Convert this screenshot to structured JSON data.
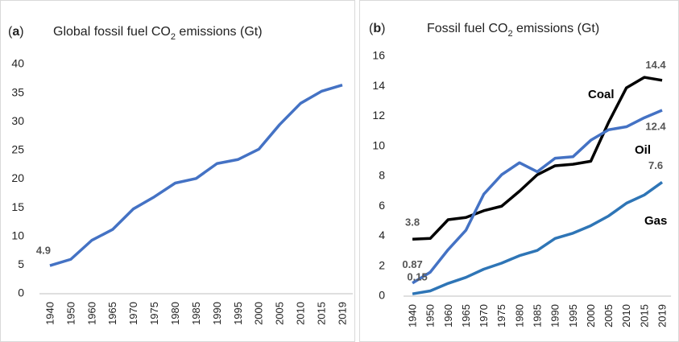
{
  "chart_data": [
    {
      "type": "line",
      "panel": "(a)",
      "title": "Global fossil fuel CO₂ emissions (Gt)",
      "categories": [
        "1940",
        "1950",
        "1960",
        "1965",
        "1970",
        "1975",
        "1980",
        "1985",
        "1990",
        "1995",
        "2000",
        "2005",
        "2010",
        "2015",
        "2019"
      ],
      "series": [
        {
          "name": null,
          "color": "#4472c4",
          "values": [
            4.9,
            6.0,
            9.3,
            11.2,
            14.8,
            16.9,
            19.3,
            20.1,
            22.7,
            23.4,
            25.2,
            29.5,
            33.2,
            35.3,
            36.4
          ]
        }
      ],
      "ylim": [
        0,
        40
      ],
      "yticks": [
        0,
        5,
        10,
        15,
        20,
        25,
        30,
        35,
        40
      ],
      "grid": false
    },
    {
      "type": "line",
      "panel": "(b)",
      "title": "Fossil fuel CO₂ emissions (Gt)",
      "categories": [
        "1940",
        "1950",
        "1960",
        "1965",
        "1970",
        "1975",
        "1980",
        "1985",
        "1990",
        "1995",
        "2000",
        "2005",
        "2010",
        "2015",
        "2019"
      ],
      "series": [
        {
          "name": "Coal",
          "color": "#000000",
          "values": [
            3.8,
            3.85,
            5.1,
            5.25,
            5.7,
            6.0,
            7.0,
            8.1,
            8.7,
            8.8,
            9.0,
            11.6,
            13.9,
            14.6,
            14.4
          ]
        },
        {
          "name": "Oil",
          "color": "#4472c4",
          "values": [
            0.87,
            1.6,
            3.1,
            4.4,
            6.8,
            8.1,
            8.9,
            8.3,
            9.2,
            9.3,
            10.4,
            11.1,
            11.3,
            11.9,
            12.4
          ]
        },
        {
          "name": "Gas",
          "color": "#2e75b6",
          "values": [
            0.15,
            0.35,
            0.85,
            1.25,
            1.8,
            2.2,
            2.7,
            3.05,
            3.85,
            4.2,
            4.7,
            5.35,
            6.2,
            6.75,
            7.6
          ]
        }
      ],
      "ylim": [
        0,
        16
      ],
      "yticks": [
        0,
        2,
        4,
        6,
        8,
        10,
        12,
        14,
        16
      ],
      "grid": false
    }
  ]
}
